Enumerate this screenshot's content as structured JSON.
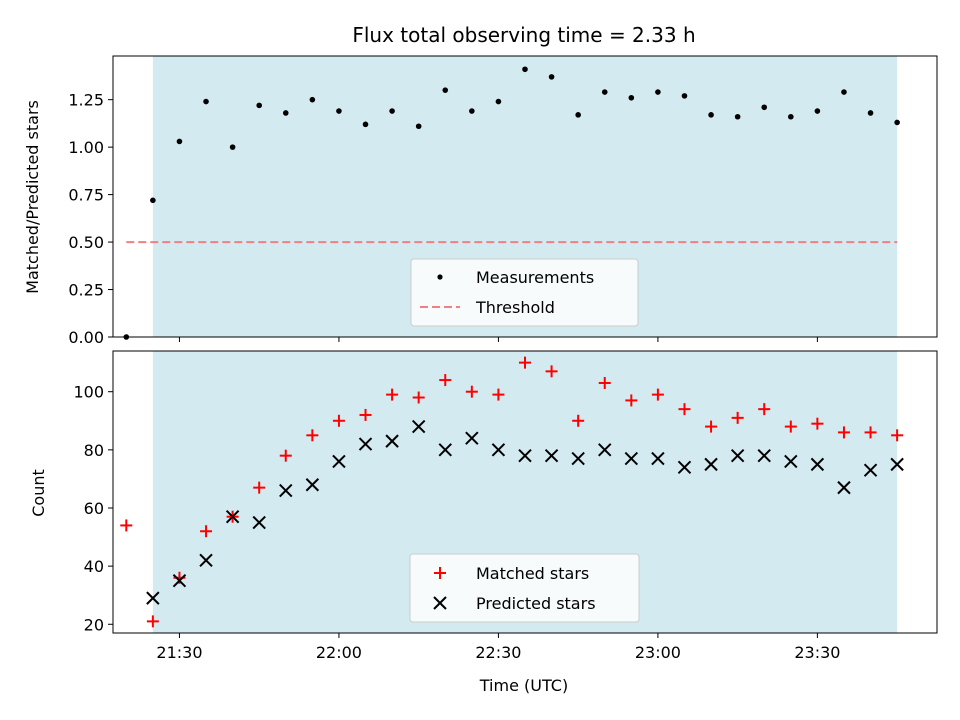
{
  "chart_data": [
    {
      "type": "scatter",
      "title": "Flux total observing time = 2.33 h",
      "xlabel": "",
      "ylabel": "Matched/Predicted stars",
      "xlim": [
        "21:17:30",
        "23:52:30"
      ],
      "ylim": [
        0,
        1.48
      ],
      "yticks": [
        "0.00",
        "0.25",
        "0.50",
        "0.75",
        "1.00",
        "1.25"
      ],
      "shaded_span": [
        "21:25",
        "23:45"
      ],
      "shade_color": "#d4eaf1",
      "grid": false,
      "legend_position": "lower-center",
      "series": [
        {
          "name": "Measurements",
          "marker": "dot",
          "color": "#000000",
          "x": [
            "21:20",
            "21:25",
            "21:30",
            "21:35",
            "21:40",
            "21:45",
            "21:50",
            "21:55",
            "22:00",
            "22:05",
            "22:10",
            "22:15",
            "22:20",
            "22:25",
            "22:30",
            "22:35",
            "22:40",
            "22:45",
            "22:50",
            "22:55",
            "23:00",
            "23:05",
            "23:10",
            "23:15",
            "23:20",
            "23:25",
            "23:30",
            "23:35",
            "23:40",
            "23:45"
          ],
          "y": [
            0.0,
            0.72,
            1.03,
            1.24,
            1.0,
            1.22,
            1.18,
            1.25,
            1.19,
            1.12,
            1.19,
            1.11,
            1.3,
            1.19,
            1.24,
            1.41,
            1.37,
            1.17,
            1.29,
            1.26,
            1.29,
            1.27,
            1.17,
            1.16,
            1.21,
            1.16,
            1.19,
            1.29,
            1.18,
            1.13
          ]
        },
        {
          "name": "Threshold",
          "style": "dashed",
          "color": "#f08080",
          "x": [
            "21:20",
            "23:45"
          ],
          "y": [
            0.5,
            0.5
          ]
        }
      ]
    },
    {
      "type": "scatter",
      "title": "",
      "xlabel": "Time (UTC)",
      "ylabel": "Count",
      "xlim": [
        "21:17:30",
        "23:52:30"
      ],
      "ylim": [
        17,
        114
      ],
      "yticks": [
        "20",
        "40",
        "60",
        "80",
        "100"
      ],
      "xticks": [
        "21:30",
        "22:00",
        "22:30",
        "23:00",
        "23:30"
      ],
      "shaded_span": [
        "21:25",
        "23:45"
      ],
      "shade_color": "#d4eaf1",
      "grid": false,
      "legend_position": "lower-center",
      "series": [
        {
          "name": "Matched stars",
          "marker": "plus",
          "color": "#ff0000",
          "x": [
            "21:20",
            "21:25",
            "21:30",
            "21:35",
            "21:40",
            "21:45",
            "21:50",
            "21:55",
            "22:00",
            "22:05",
            "22:10",
            "22:15",
            "22:20",
            "22:25",
            "22:30",
            "22:35",
            "22:40",
            "22:45",
            "22:50",
            "22:55",
            "23:00",
            "23:05",
            "23:10",
            "23:15",
            "23:20",
            "23:25",
            "23:30",
            "23:35",
            "23:40",
            "23:45"
          ],
          "y": [
            54,
            21,
            36,
            52,
            57,
            67,
            78,
            85,
            90,
            92,
            99,
            98,
            104,
            100,
            99,
            110,
            107,
            90,
            103,
            97,
            99,
            94,
            88,
            91,
            94,
            88,
            89,
            86,
            86,
            85
          ]
        },
        {
          "name": "Predicted stars",
          "marker": "x",
          "color": "#000000",
          "x": [
            "21:25",
            "21:30",
            "21:35",
            "21:40",
            "21:45",
            "21:50",
            "21:55",
            "22:00",
            "22:05",
            "22:10",
            "22:15",
            "22:20",
            "22:25",
            "22:30",
            "22:35",
            "22:40",
            "22:45",
            "22:50",
            "22:55",
            "23:00",
            "23:05",
            "23:10",
            "23:15",
            "23:20",
            "23:25",
            "23:30",
            "23:35",
            "23:40",
            "23:45"
          ],
          "y": [
            29,
            35,
            42,
            57,
            55,
            66,
            68,
            76,
            82,
            83,
            88,
            80,
            84,
            80,
            78,
            78,
            77,
            80,
            77,
            77,
            74,
            75,
            78,
            78,
            76,
            75,
            67,
            73,
            75
          ]
        }
      ]
    }
  ]
}
